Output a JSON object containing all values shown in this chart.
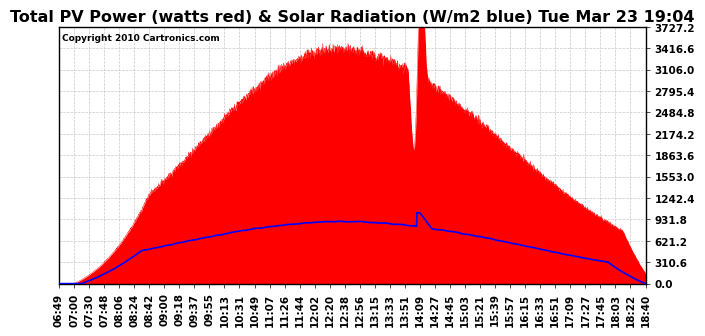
{
  "title": "Total PV Power (watts red) & Solar Radiation (W/m2 blue) Tue Mar 23 19:04",
  "copyright": "Copyright 2010 Cartronics.com",
  "y_max": 3727.2,
  "y_ticks": [
    0.0,
    310.6,
    621.2,
    931.8,
    1242.4,
    1553.0,
    1863.6,
    2174.2,
    2484.8,
    2795.4,
    3106.0,
    3416.6,
    3727.2
  ],
  "x_labels": [
    "06:49",
    "07:00",
    "07:30",
    "07:48",
    "08:06",
    "08:24",
    "08:42",
    "09:00",
    "09:18",
    "09:37",
    "09:55",
    "10:13",
    "10:31",
    "10:49",
    "11:07",
    "11:26",
    "11:44",
    "12:02",
    "12:20",
    "12:38",
    "12:56",
    "13:15",
    "13:33",
    "13:51",
    "14:09",
    "14:27",
    "14:45",
    "15:03",
    "15:21",
    "15:39",
    "15:57",
    "16:15",
    "16:33",
    "16:51",
    "17:09",
    "17:27",
    "17:45",
    "18:03",
    "18:22",
    "18:40"
  ],
  "bg_color": "#ffffff",
  "fill_color": "#ff0000",
  "line_color": "#0000ff",
  "grid_color": "#bbbbbb",
  "title_fontsize": 11.5,
  "tick_fontsize": 7.5,
  "copyright_fontsize": 6.5
}
